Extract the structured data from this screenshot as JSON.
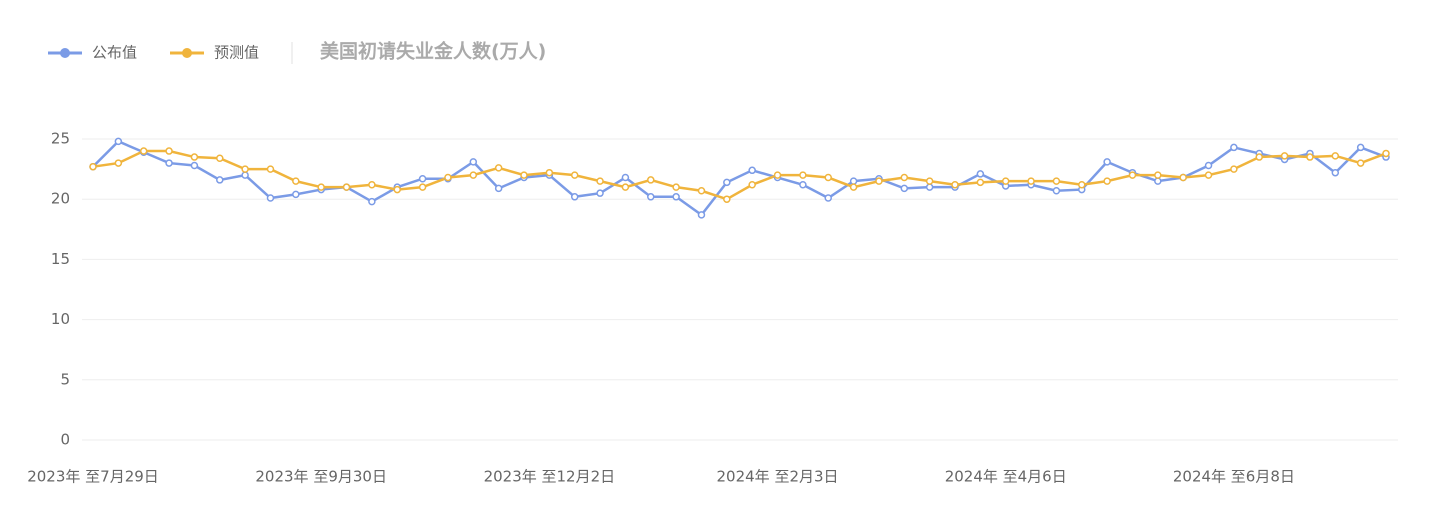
{
  "chart_data": {
    "type": "line",
    "title": "美国初请失业金人数(万人)",
    "categories": [
      "2023年 至7月29日",
      null,
      null,
      null,
      null,
      null,
      null,
      null,
      null,
      "2023年 至9月30日",
      null,
      null,
      null,
      null,
      null,
      null,
      null,
      null,
      "2023年 至12月2日",
      null,
      null,
      null,
      null,
      null,
      null,
      null,
      null,
      "2024年 至2月3日",
      null,
      null,
      null,
      null,
      null,
      null,
      null,
      null,
      "2024年 至4月6日",
      null,
      null,
      null,
      null,
      null,
      null,
      null,
      null,
      "2024年 至6月8日",
      null,
      null,
      null,
      null,
      null,
      null
    ],
    "series": [
      {
        "name": "公布值",
        "color": "#7b9be6",
        "values": [
          22.7,
          24.8,
          23.9,
          23.0,
          22.8,
          21.6,
          22.0,
          20.1,
          20.4,
          20.8,
          21.0,
          19.8,
          21.0,
          21.7,
          21.7,
          23.1,
          20.9,
          21.8,
          22.0,
          20.2,
          20.5,
          21.8,
          20.2,
          20.2,
          18.7,
          21.4,
          22.4,
          21.8,
          21.2,
          20.1,
          21.5,
          21.7,
          20.9,
          21.0,
          21.0,
          22.1,
          21.1,
          21.2,
          20.7,
          20.8,
          23.1,
          22.2,
          21.5,
          21.8,
          22.8,
          24.3,
          23.8,
          23.3,
          23.8,
          22.2,
          24.3,
          23.5
        ]
      },
      {
        "name": "预测值",
        "color": "#f0b43c",
        "values": [
          22.7,
          23.0,
          24.0,
          24.0,
          23.5,
          23.4,
          22.5,
          22.5,
          21.5,
          21.0,
          21.0,
          21.2,
          20.8,
          21.0,
          21.8,
          22.0,
          22.6,
          22.0,
          22.2,
          22.0,
          21.5,
          21.0,
          21.6,
          21.0,
          20.7,
          20.0,
          21.2,
          22.0,
          22.0,
          21.8,
          21.0,
          21.5,
          21.8,
          21.5,
          21.2,
          21.4,
          21.5,
          21.5,
          21.5,
          21.2,
          21.5,
          22.0,
          22.0,
          21.8,
          22.0,
          22.5,
          23.5,
          23.6,
          23.5,
          23.6,
          23.0,
          23.8
        ]
      }
    ],
    "ylim": [
      0,
      25
    ],
    "yticks": [
      0,
      5,
      10,
      15,
      20,
      25
    ],
    "grid": true
  }
}
